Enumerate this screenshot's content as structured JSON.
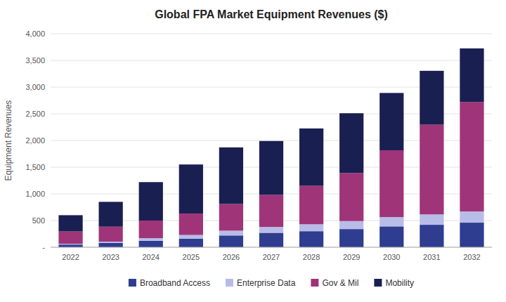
{
  "chart_data": {
    "type": "bar",
    "title": "Global FPA Market Equipment Revenues ($)",
    "ylabel": "Equipment Revenues",
    "categories": [
      "2022",
      "2023",
      "2024",
      "2025",
      "2026",
      "2027",
      "2028",
      "2029",
      "2030",
      "2031",
      "2032"
    ],
    "series": [
      {
        "name": "Broadband Access",
        "color": "#2e3d8f",
        "values": [
          50,
          80,
          120,
          160,
          220,
          270,
          300,
          340,
          390,
          420,
          460
        ]
      },
      {
        "name": "Enterprise Data",
        "color": "#b8bce8",
        "values": [
          15,
          25,
          50,
          70,
          90,
          110,
          130,
          150,
          175,
          195,
          210
        ]
      },
      {
        "name": "Gov & Mil",
        "color": "#a03478",
        "values": [
          230,
          280,
          330,
          400,
          500,
          600,
          720,
          900,
          1250,
          1680,
          2050
        ]
      },
      {
        "name": "Mobility",
        "color": "#1a1f52",
        "values": [
          305,
          465,
          720,
          920,
          1060,
          1010,
          1075,
          1120,
          1075,
          1010,
          1005
        ]
      }
    ],
    "ylim": [
      0,
      4000
    ],
    "yticks": [
      {
        "value": 0,
        "label": "-"
      },
      500,
      {
        "value": 1000,
        "label": "1,000"
      },
      {
        "value": 1500,
        "label": "1,500"
      },
      {
        "value": 2000,
        "label": "2,000"
      },
      {
        "value": 2500,
        "label": "2,500"
      },
      {
        "value": 3000,
        "label": "3,000"
      },
      {
        "value": 3500,
        "label": "3,500"
      },
      {
        "value": 4000,
        "label": "4,000"
      }
    ],
    "stacked": true,
    "grid": true,
    "legend": "bottom"
  }
}
